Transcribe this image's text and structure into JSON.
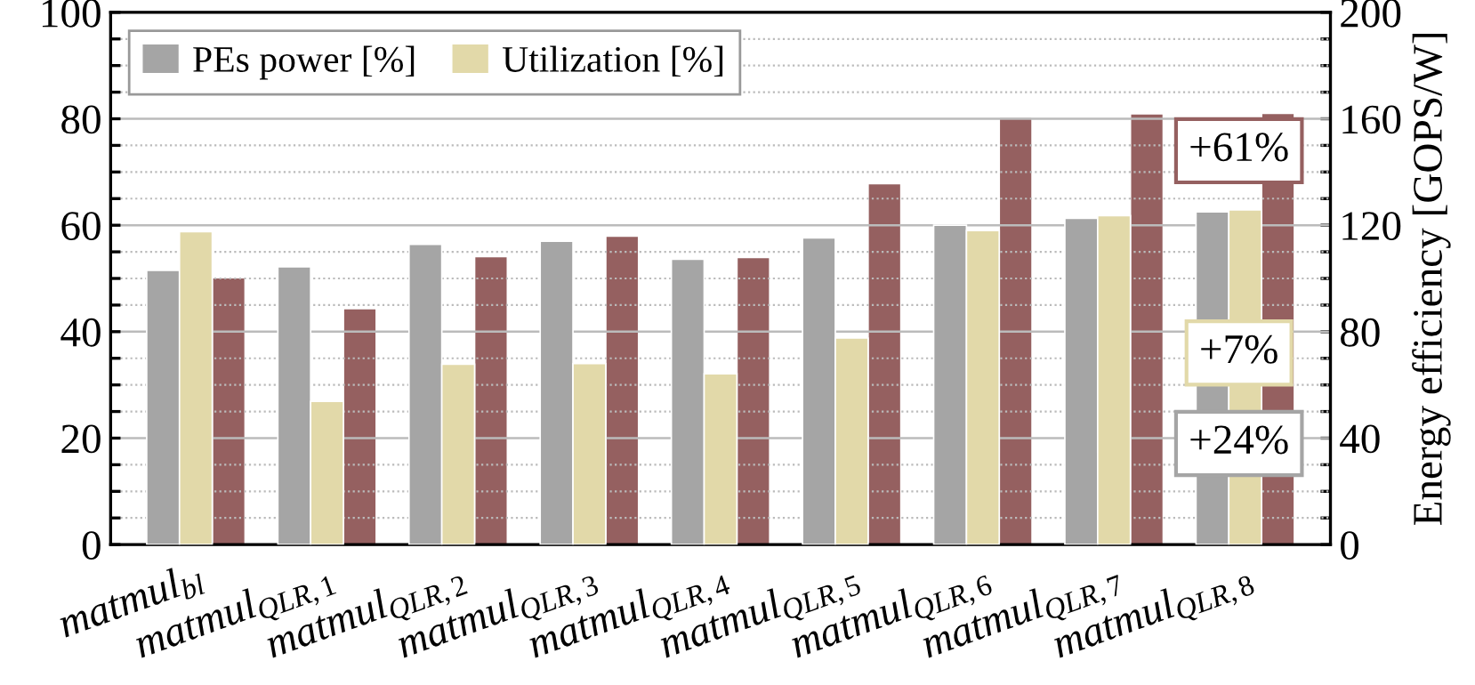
{
  "chart_data": {
    "type": "bar",
    "categories": [
      "matmul$_{bl}$",
      "matmul$_{QLR,1}$",
      "matmul$_{QLR,2}$",
      "matmul$_{QLR,3}$",
      "matmul$_{QLR,4}$",
      "matmul$_{QLR,5}$",
      "matmul$_{QLR,6}$",
      "matmul$_{QLR,7}$",
      "matmul$_{QLR,8}$"
    ],
    "series": [
      {
        "name": "PEs power [%]",
        "color": "#a5a5a5",
        "values": [
          51.5,
          52.2,
          56.4,
          57,
          53.6,
          57.6,
          60,
          61.3,
          62.5
        ]
      },
      {
        "name": "Utilization [%]",
        "color": "#e2d9a9",
        "values": [
          58.8,
          26.9,
          33.9,
          34,
          32.1,
          38.8,
          59,
          61.8,
          62.9
        ]
      },
      {
        "color": "#956060",
        "axis": "y2",
        "values": [
          100.3,
          88.7,
          108.2,
          115.9,
          107.9,
          135.6,
          160.5,
          161.9,
          162
        ]
      }
    ],
    "y2label": "Energy efficiency [GOPS/W]",
    "ylim": [
      0,
      100
    ],
    "yticks": [
      0,
      {
        "value": 5,
        "label": null
      },
      {
        "value": 10,
        "label": null
      },
      {
        "value": 15,
        "label": null
      },
      20,
      {
        "value": 25,
        "label": null
      },
      {
        "value": 30,
        "label": null
      },
      {
        "value": 35,
        "label": null
      },
      40,
      {
        "value": 45,
        "label": null
      },
      {
        "value": 50,
        "label": null
      },
      {
        "value": 55,
        "label": null
      },
      60,
      {
        "value": 65,
        "label": null
      },
      {
        "value": 70,
        "label": null
      },
      {
        "value": 75,
        "label": null
      },
      80,
      {
        "value": 85,
        "label": null
      },
      {
        "value": 90,
        "label": null
      },
      {
        "value": 95,
        "label": null
      },
      100
    ],
    "y2lim": [
      0,
      200
    ],
    "y2ticks": [
      0,
      {
        "value": 10,
        "label": null
      },
      {
        "value": 20,
        "label": null
      },
      {
        "value": 30,
        "label": null
      },
      40,
      {
        "value": 50,
        "label": null
      },
      {
        "value": 60,
        "label": null
      },
      {
        "value": 70,
        "label": null
      },
      80,
      {
        "value": 90,
        "label": null
      },
      {
        "value": 100,
        "label": null
      },
      {
        "value": 110,
        "label": null
      },
      120,
      {
        "value": 130,
        "label": null
      },
      {
        "value": 140,
        "label": null
      },
      {
        "value": 150,
        "label": null
      },
      160,
      {
        "value": 170,
        "label": null
      },
      {
        "value": 180,
        "label": null
      },
      {
        "value": 190,
        "label": null
      },
      200
    ],
    "grid": "y",
    "legend": "top left",
    "annotations": [
      "+61%",
      "+7%",
      "+24%"
    ]
  }
}
